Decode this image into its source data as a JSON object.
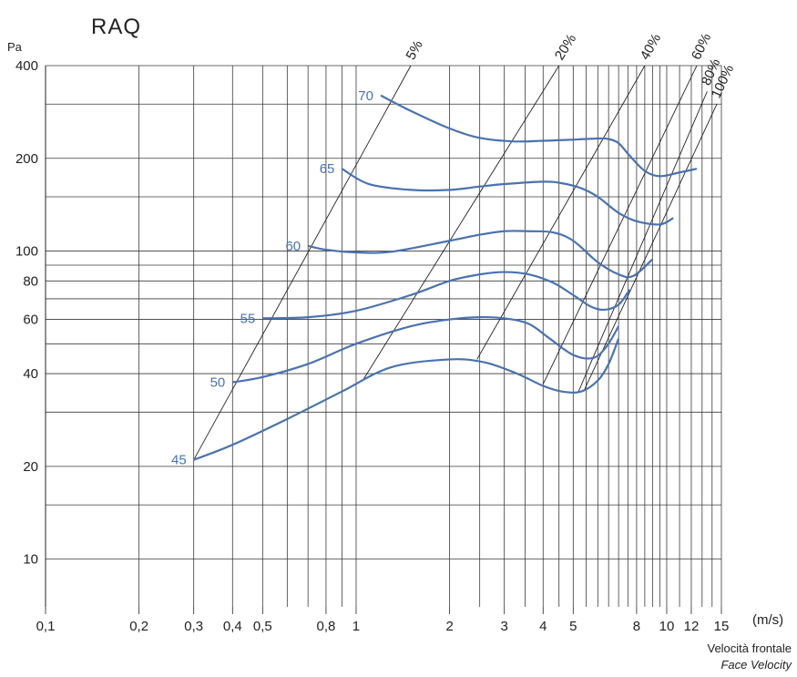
{
  "chart_data": {
    "type": "line",
    "title": "RAQ",
    "y_unit": "Pa",
    "x_unit": "(m/s)",
    "x_caption": "Velocità frontale",
    "x_caption_en": "Face Velocity",
    "x_scale": "log",
    "y_scale": "log",
    "xlim": [
      0.1,
      15
    ],
    "ylim": [
      7,
      400
    ],
    "x_ticks": [
      {
        "v": 0.1,
        "label": "0,1"
      },
      {
        "v": 0.2,
        "label": "0,2"
      },
      {
        "v": 0.3,
        "label": "0,3"
      },
      {
        "v": 0.4,
        "label": "0,4"
      },
      {
        "v": 0.5,
        "label": "0,5"
      },
      {
        "v": 0.8,
        "label": "0,8"
      },
      {
        "v": 1,
        "label": "1"
      },
      {
        "v": 2,
        "label": "2"
      },
      {
        "v": 3,
        "label": "3"
      },
      {
        "v": 4,
        "label": "4"
      },
      {
        "v": 5,
        "label": "5"
      },
      {
        "v": 8,
        "label": "8"
      },
      {
        "v": 10,
        "label": "10"
      },
      {
        "v": 12,
        "label": "12"
      },
      {
        "v": 15,
        "label": "15"
      }
    ],
    "x_grid": [
      0.1,
      0.2,
      0.3,
      0.4,
      0.5,
      0.6,
      0.7,
      0.8,
      0.9,
      1,
      2,
      2.5,
      3,
      3.5,
      4,
      4.5,
      5,
      5.5,
      6,
      6.5,
      7,
      7.5,
      8,
      8.5,
      9,
      9.5,
      10,
      11,
      12,
      13,
      14,
      15
    ],
    "y_ticks": [
      {
        "v": 10,
        "label": "10"
      },
      {
        "v": 20,
        "label": "20"
      },
      {
        "v": 40,
        "label": "40"
      },
      {
        "v": 60,
        "label": "60"
      },
      {
        "v": 80,
        "label": "80"
      },
      {
        "v": 100,
        "label": "100"
      },
      {
        "v": 200,
        "label": "200"
      },
      {
        "v": 400,
        "label": "400"
      }
    ],
    "y_grid": [
      10,
      15,
      20,
      30,
      40,
      50,
      60,
      70,
      80,
      90,
      100,
      150,
      200,
      300,
      400
    ],
    "grid": true,
    "efficiency_lines": [
      {
        "label": "5%",
        "from": [
          0.3,
          21
        ],
        "to": [
          1.5,
          400
        ]
      },
      {
        "label": "20%",
        "from": [
          1.05,
          38
        ],
        "to": [
          4.5,
          400
        ]
      },
      {
        "label": "40%",
        "from": [
          2.45,
          44.5
        ],
        "to": [
          8.5,
          400
        ]
      },
      {
        "label": "60%",
        "from": [
          4.0,
          37
        ],
        "to": [
          12.5,
          400
        ]
      },
      {
        "label": "80%",
        "from": [
          5.2,
          35
        ],
        "to": [
          13.5,
          330
        ]
      },
      {
        "label": "100%",
        "from": [
          5.4,
          35
        ],
        "to": [
          14.5,
          300
        ]
      }
    ],
    "series_color": "#4a72b0",
    "series": [
      {
        "name": "45",
        "x": [
          0.3,
          0.4,
          0.6,
          0.9,
          1.3,
          2,
          2.6,
          3.3,
          4,
          4.6,
          5.3,
          6,
          6.5,
          7
        ],
        "y": [
          21,
          23.5,
          28.5,
          35,
          42,
          44.5,
          43.5,
          40,
          36.5,
          35,
          35,
          38,
          43,
          52
        ]
      },
      {
        "name": "50",
        "x": [
          0.4,
          0.5,
          0.7,
          1,
          1.5,
          2,
          2.5,
          3,
          3.6,
          4.2,
          5,
          5.8,
          6.4,
          7
        ],
        "y": [
          37.5,
          39,
          43,
          50,
          57,
          60,
          61,
          60.5,
          58,
          52,
          46,
          45,
          49,
          57
        ]
      },
      {
        "name": "55",
        "x": [
          0.5,
          0.7,
          1,
          1.5,
          2,
          2.5,
          3,
          3.6,
          4.3,
          5,
          5.7,
          6.3,
          7,
          7.6
        ],
        "y": [
          60.5,
          61,
          64,
          72,
          80,
          84,
          85.5,
          84,
          79,
          72,
          66,
          64.5,
          67,
          75
        ]
      },
      {
        "name": "60",
        "x": [
          0.7,
          0.8,
          1,
          1.3,
          2,
          2.5,
          3,
          3.6,
          4.3,
          5,
          6,
          7,
          7.8,
          9
        ],
        "y": [
          104,
          101,
          99,
          99.5,
          108,
          113,
          116,
          116,
          115,
          108,
          92,
          84,
          83,
          94
        ]
      },
      {
        "name": "65",
        "x": [
          0.9,
          1.1,
          1.5,
          2,
          2.5,
          3,
          4,
          4.6,
          5.3,
          6,
          7,
          8,
          9.5,
          10.5
        ],
        "y": [
          185,
          165,
          158,
          158,
          162,
          165,
          168,
          166,
          160,
          150,
          133,
          125,
          122,
          128
        ]
      },
      {
        "name": "70",
        "x": [
          1.2,
          1.5,
          2,
          2.5,
          3.2,
          4,
          5,
          6,
          6.5,
          7,
          7.6,
          8.5,
          9.5,
          11,
          12.5
        ],
        "y": [
          320,
          285,
          250,
          233,
          227,
          228,
          230,
          232,
          231,
          224,
          204,
          182,
          175,
          180,
          185
        ]
      }
    ]
  }
}
